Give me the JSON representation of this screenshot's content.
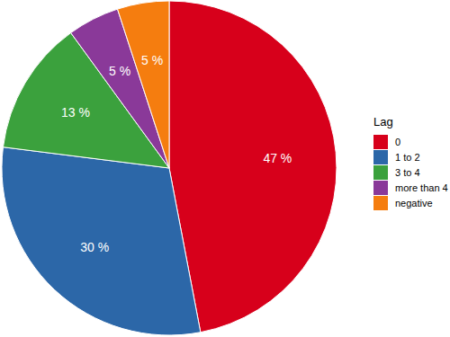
{
  "chart_data": {
    "type": "pie",
    "legend_title": "Lag",
    "categories": [
      "0",
      "1 to 2",
      "3 to 4",
      "more than 4",
      "negative"
    ],
    "values": [
      47,
      30,
      13,
      5,
      5
    ],
    "value_labels": [
      "47 %",
      "30 %",
      "13 %",
      "5 %",
      "5 %"
    ],
    "colors": [
      "#d7001b",
      "#2c67a8",
      "#3ba13d",
      "#8a3999",
      "#f57d0f"
    ],
    "data_labels": true,
    "legend": "right"
  }
}
